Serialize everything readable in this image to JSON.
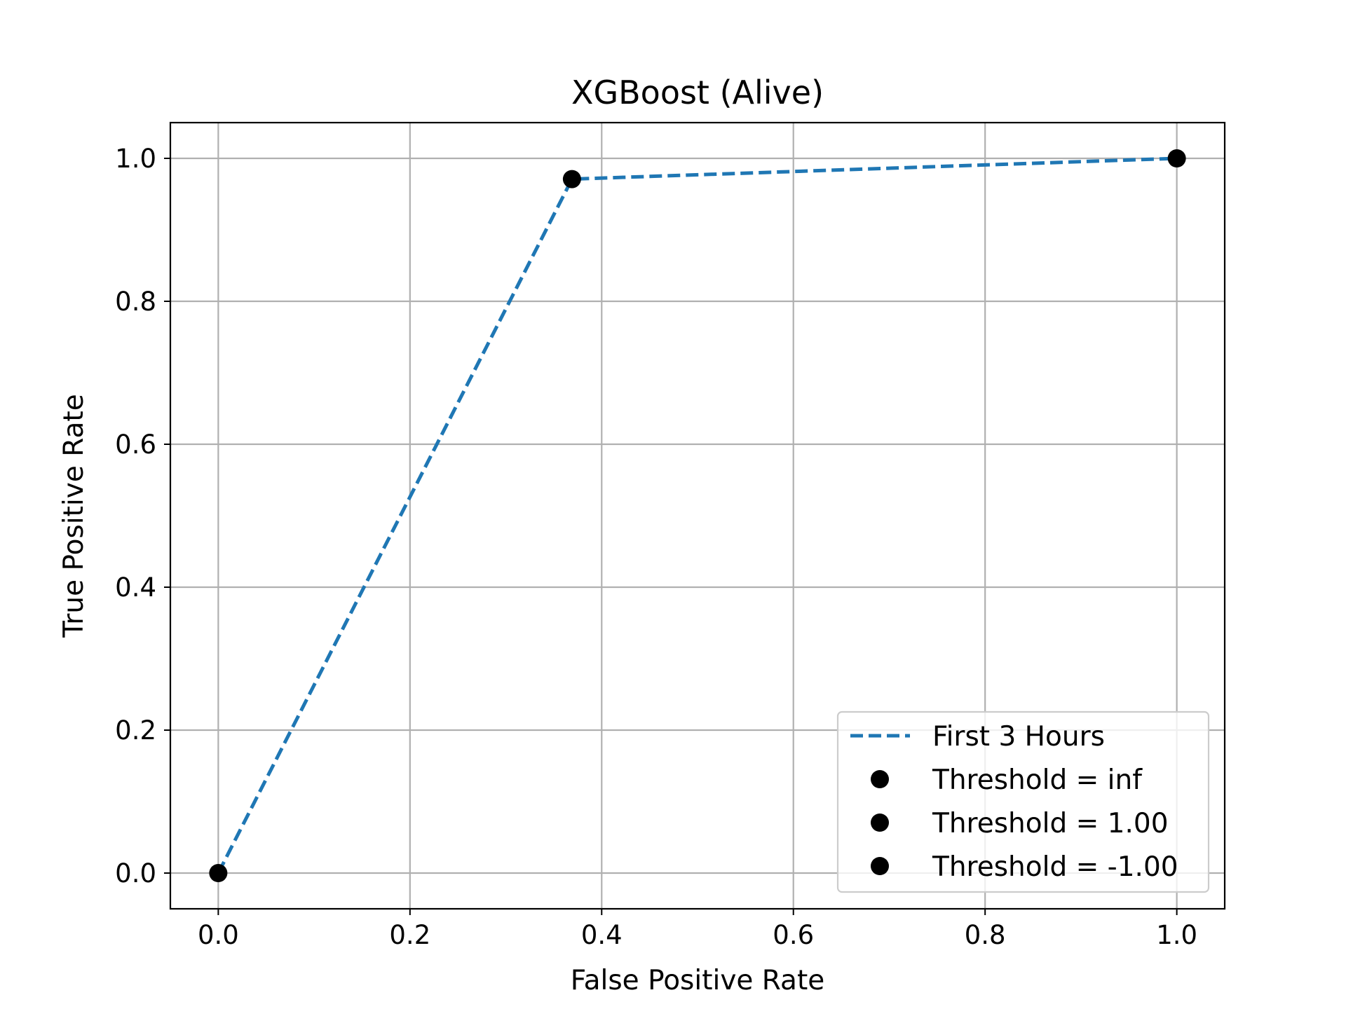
{
  "chart_data": {
    "type": "line",
    "title": "XGBoost (Alive)",
    "xlabel": "False Positive Rate",
    "ylabel": "True Positive Rate",
    "xlim": [
      -0.05,
      1.05
    ],
    "ylim": [
      -0.05,
      1.05
    ],
    "xticks": [
      0.0,
      0.2,
      0.4,
      0.6,
      0.8,
      1.0
    ],
    "yticks": [
      0.0,
      0.2,
      0.4,
      0.6,
      0.8,
      1.0
    ],
    "xtick_labels": [
      "0.0",
      "0.2",
      "0.4",
      "0.6",
      "0.8",
      "1.0"
    ],
    "ytick_labels": [
      "0.0",
      "0.2",
      "0.4",
      "0.6",
      "0.8",
      "1.0"
    ],
    "grid": true,
    "legend_position": "bottom-right",
    "series": [
      {
        "name": "First 3 Hours",
        "style": "dashed",
        "color": "#1f77b4",
        "x": [
          0.0,
          0.369,
          1.0
        ],
        "y": [
          0.0,
          0.971,
          1.0
        ]
      }
    ],
    "points": [
      {
        "name": "Threshold = inf",
        "x": 0.0,
        "y": 0.0,
        "color": "#000000"
      },
      {
        "name": "Threshold = 1.00",
        "x": 0.369,
        "y": 0.971,
        "color": "#000000"
      },
      {
        "name": "Threshold = -1.00",
        "x": 1.0,
        "y": 1.0,
        "color": "#000000"
      }
    ]
  }
}
